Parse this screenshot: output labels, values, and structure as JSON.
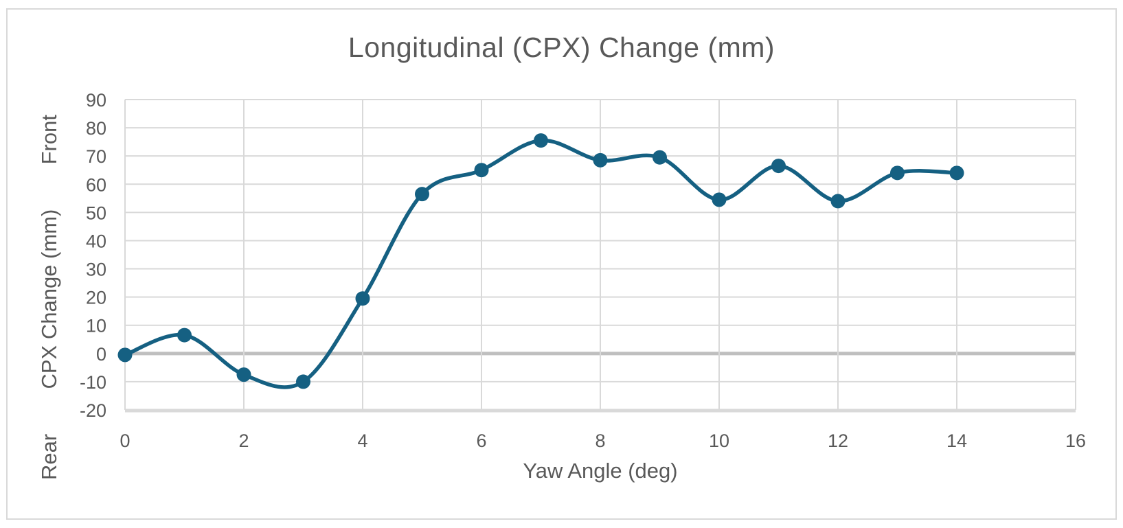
{
  "chart": {
    "title": "Longitudinal (CPX) Change (mm)",
    "x_axis_title": "Yaw Angle (deg)",
    "y_axis_title": "CPX Change (mm)",
    "y_axis_top_annotation": "Front",
    "y_axis_bottom_annotation": "Rear"
  },
  "chart_data": {
    "type": "line",
    "title": "Longitudinal (CPX) Change (mm)",
    "xlabel": "Yaw Angle (deg)",
    "ylabel": "CPX Change (mm)",
    "ylabel_annotations": {
      "top": "Front",
      "bottom": "Rear"
    },
    "x": [
      0,
      1,
      2,
      3,
      4,
      5,
      6,
      7,
      8,
      9,
      10,
      11,
      12,
      13,
      14
    ],
    "series": [
      {
        "name": "CPX Change",
        "values": [
          -0.5,
          6.5,
          -7.5,
          -10,
          19.5,
          56.5,
          65,
          75.5,
          68.5,
          69.5,
          54.5,
          66.5,
          54,
          64,
          64
        ]
      }
    ],
    "xlim": [
      0,
      16
    ],
    "ylim": [
      -20,
      90
    ],
    "x_ticks": [
      0,
      2,
      4,
      6,
      8,
      10,
      12,
      14,
      16
    ],
    "y_ticks": [
      90,
      80,
      70,
      60,
      50,
      40,
      30,
      20,
      10,
      0,
      -10,
      -20
    ],
    "grid": true,
    "legend": false,
    "smooth": true,
    "markers": true,
    "series_color": "#156082",
    "gridline_color": "#D9D9D9",
    "zero_line_color": "#BFBFBF",
    "axis_line_color": "#D9D9D9",
    "text_color": "#595959"
  }
}
